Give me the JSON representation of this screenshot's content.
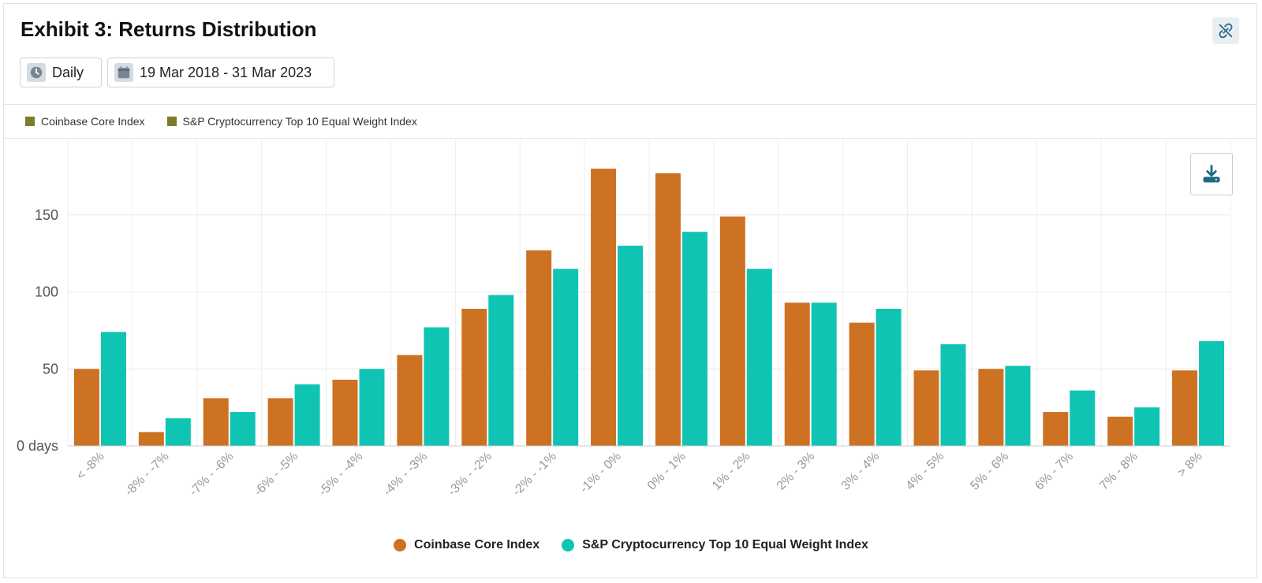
{
  "header": {
    "title": "Exhibit 3: Returns Distribution",
    "frequency_label": "Daily",
    "date_range_label": "19 Mar 2018 - 31 Mar 2023"
  },
  "icons": {
    "unlink": "unlink-icon",
    "clock": "clock-icon",
    "calendar": "calendar-icon",
    "download": "download-icon"
  },
  "top_legend": [
    "Coinbase Core Index",
    "S&P Cryptocurrency Top 10 Equal Weight Index"
  ],
  "colors": {
    "coinbase": "#cd7222",
    "sp": "#10c4b3",
    "top_legend_swatch": "#7d7a2b"
  },
  "chart_data": {
    "type": "bar",
    "categories": [
      "< -8%",
      "-8% - -7%",
      "-7% - -6%",
      "-6% - -5%",
      "-5% - -4%",
      "-4% - -3%",
      "-3% - -2%",
      "-2% - -1%",
      "-1% - 0%",
      "0% - 1%",
      "1% - 2%",
      "2% - 3%",
      "3% - 4%",
      "4% - 5%",
      "5% - 6%",
      "6% - 7%",
      "7% - 8%",
      "> 8%"
    ],
    "series": [
      {
        "name": "Coinbase Core Index",
        "values": [
          50,
          9,
          31,
          31,
          43,
          59,
          89,
          127,
          180,
          177,
          149,
          93,
          80,
          49,
          50,
          22,
          19,
          49
        ]
      },
      {
        "name": "S&P Cryptocurrency Top 10 Equal Weight Index",
        "values": [
          74,
          18,
          22,
          40,
          50,
          77,
          98,
          115,
          130,
          139,
          115,
          93,
          89,
          66,
          52,
          36,
          25,
          68
        ]
      }
    ],
    "ylim": [
      0,
      200
    ],
    "yticks": [
      0,
      50,
      100,
      150
    ],
    "ytick_labels": [
      "0 days",
      "50",
      "100",
      "150"
    ],
    "grid": true,
    "legend_position": "bottom"
  }
}
